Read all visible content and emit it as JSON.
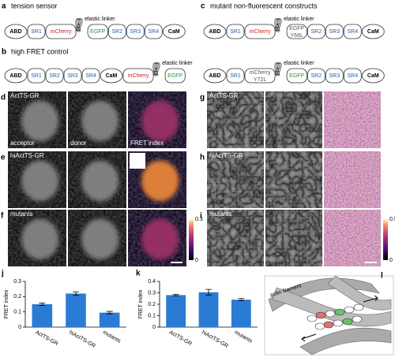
{
  "constructs": [
    {
      "label": "a",
      "title": "tension sensor",
      "linker": "elastic linker",
      "before": [
        {
          "label": "ABD",
          "shape": "oval",
          "color": "#000"
        },
        {
          "label": "SR1",
          "shape": "box",
          "color": "#1f5fb0"
        },
        {
          "label": "mCherry",
          "shape": "box",
          "color": "#d02020"
        }
      ],
      "after": [
        {
          "label": "EGFP",
          "shape": "box",
          "color": "#1a9a3a"
        },
        {
          "label": "SR2",
          "shape": "box",
          "color": "#1f5fb0"
        },
        {
          "label": "SR3",
          "shape": "box",
          "color": "#1f5fb0"
        },
        {
          "label": "SR4",
          "shape": "box",
          "color": "#1f5fb0"
        },
        {
          "label": "CaM",
          "shape": "oval",
          "color": "#000"
        }
      ]
    },
    {
      "label": "b",
      "title": "high FRET control",
      "linker": "elastic linker",
      "before": [
        {
          "label": "ABD",
          "shape": "oval",
          "color": "#000"
        },
        {
          "label": "SR1",
          "shape": "box",
          "color": "#1f5fb0"
        },
        {
          "label": "SR2",
          "shape": "box",
          "color": "#1f5fb0"
        },
        {
          "label": "SR3",
          "shape": "box",
          "color": "#1f5fb0"
        },
        {
          "label": "SR4",
          "shape": "box",
          "color": "#1f5fb0"
        },
        {
          "label": "CaM",
          "shape": "oval",
          "color": "#000"
        },
        {
          "label": "mCherry",
          "shape": "box",
          "color": "#d02020"
        }
      ],
      "after": [
        {
          "label": "EGFP",
          "shape": "box",
          "color": "#1a9a3a"
        }
      ]
    },
    {
      "label": "c",
      "title": "mutant non-fluorescent constructs",
      "linker": "elastic linker",
      "before": [
        {
          "label": "ABD",
          "shape": "oval",
          "color": "#000"
        },
        {
          "label": "SR1",
          "shape": "box",
          "color": "#1f5fb0"
        },
        {
          "label": "mCherry",
          "shape": "box",
          "color": "#d02020"
        }
      ],
      "after": [
        {
          "label": "EGFP",
          "sublabel": "Y66L",
          "shape": "box",
          "color": "#555"
        },
        {
          "label": "SR2",
          "shape": "box",
          "color": "#1f5fb0"
        },
        {
          "label": "SR3",
          "shape": "box",
          "color": "#1f5fb0"
        },
        {
          "label": "SR4",
          "shape": "box",
          "color": "#1f5fb0"
        },
        {
          "label": "CaM",
          "shape": "oval",
          "color": "#000"
        }
      ]
    },
    {
      "linker": "elastic linker",
      "before": [
        {
          "label": "ABD",
          "shape": "oval",
          "color": "#000"
        },
        {
          "label": "SR1",
          "shape": "box",
          "color": "#1f5fb0"
        },
        {
          "label": "mCherry",
          "sublabel": "Y72L",
          "shape": "box",
          "color": "#555"
        }
      ],
      "after": [
        {
          "label": "EGFP",
          "shape": "box",
          "color": "#1a9a3a"
        },
        {
          "label": "SR2",
          "shape": "box",
          "color": "#1f5fb0"
        },
        {
          "label": "SR3",
          "shape": "box",
          "color": "#1f5fb0"
        },
        {
          "label": "SR4",
          "shape": "box",
          "color": "#1f5fb0"
        },
        {
          "label": "CaM",
          "shape": "oval",
          "color": "#000"
        }
      ]
    }
  ],
  "images": [
    {
      "label": "d",
      "name": "ActTS-GR",
      "captions": [
        "acceptor",
        "donor",
        "FRET index"
      ]
    },
    {
      "label": "e",
      "name": "hiActTS-GR"
    },
    {
      "label": "f",
      "name": "mutants",
      "colorbar": [
        0.3,
        0
      ]
    },
    {
      "label": "g",
      "name": "ActTS-GR"
    },
    {
      "label": "h",
      "name": "hiActTS-GR"
    },
    {
      "label": "i",
      "name": "mutants",
      "colorbar": [
        0.5,
        0
      ]
    }
  ],
  "chart_data": [
    {
      "type": "bar",
      "panel": "j",
      "y_label": "FRET index",
      "categories": [
        "ActTS-GR",
        "hiActTS-GR",
        "mutants"
      ],
      "values": [
        0.15,
        0.22,
        0.095
      ],
      "errors": [
        0.008,
        0.012,
        0.008
      ],
      "color": "#2a7bd4",
      "ylim": [
        0,
        0.3
      ],
      "yticks": [
        0,
        0.1,
        0.2,
        0.3
      ]
    },
    {
      "type": "bar",
      "panel": "k",
      "y_label": "FRET index",
      "categories": [
        "ActTS-GR",
        "hiActTS-GR",
        "mutants"
      ],
      "values": [
        0.28,
        0.305,
        0.24
      ],
      "errors": [
        0.006,
        0.025,
        0.01
      ],
      "color": "#2a7bd4",
      "ylim": [
        0,
        0.4
      ],
      "yticks": [
        0,
        0.1,
        0.2,
        0.3,
        0.4
      ]
    }
  ],
  "schematic": {
    "label": "l",
    "text": "actin filament"
  }
}
